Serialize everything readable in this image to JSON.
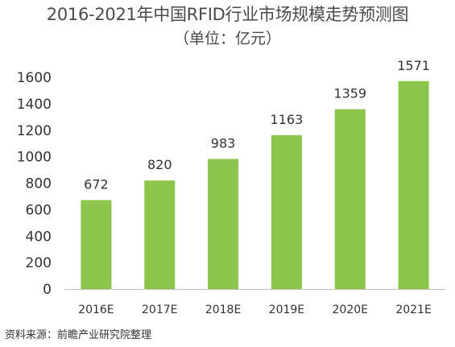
{
  "chart_data": {
    "type": "bar",
    "title": "2016-2021年中国RFID行业市场规模走势预测图",
    "subtitle": "（单位：亿元）",
    "categories": [
      "2016E",
      "2017E",
      "2018E",
      "2019E",
      "2020E",
      "2021E"
    ],
    "values": [
      672,
      820,
      983,
      1163,
      1359,
      1571
    ],
    "y_ticks": [
      0,
      200,
      400,
      600,
      800,
      1000,
      1200,
      1400,
      1600
    ],
    "ylim": [
      0,
      1600
    ],
    "xlabel": "",
    "ylabel": "",
    "grid": false,
    "legend": "none",
    "bar_color": "#8dc44b",
    "axis_color": "#bfbfbf"
  },
  "source_note": "资料来源：前瞻产业研究院整理"
}
